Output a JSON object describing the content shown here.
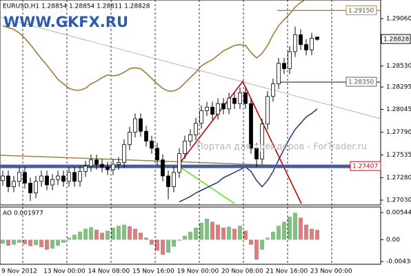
{
  "chart_data": [
    {
      "type": "candlestick",
      "title": "EURUSD,H1  1.28854 1.28854 1.28811 1.28828",
      "logo": "WWW.GKFX.RU",
      "watermark": "Портал для трейдеров - ForTrader.ru",
      "x_axis_labels": [
        "9 Nov 2012",
        "13 Nov 00:00",
        "14 Nov 08:00",
        "15 Nov 16:00",
        "19 Nov 00:00",
        "20 Nov 08:00",
        "21 Nov 16:00",
        "23 Nov 00:00"
      ],
      "open": [
        1.2725,
        1.273,
        1.2718,
        1.2724,
        1.2734,
        1.2722,
        1.2711,
        1.2724,
        1.273,
        1.272,
        1.2726,
        1.273,
        1.2724,
        1.2734,
        1.2724,
        1.2735,
        1.2741,
        1.2748,
        1.2743,
        1.274,
        1.2737,
        1.2743,
        1.2745,
        1.2765,
        1.2779,
        1.2794,
        1.278,
        1.2769,
        1.2761,
        1.2748,
        1.273,
        1.2718,
        1.2734,
        1.2755,
        1.2769,
        1.2776,
        1.2789,
        1.2803,
        1.2807,
        1.2799,
        1.2811,
        1.2805,
        1.2817,
        1.2811,
        1.2823,
        1.2811,
        1.2761,
        1.2749,
        1.2788,
        1.2819,
        1.2833,
        1.2856,
        1.285,
        1.2869,
        1.2888,
        1.2877,
        1.2871,
        1.28854
      ],
      "high": [
        1.2736,
        1.2736,
        1.273,
        1.274,
        1.274,
        1.2728,
        1.273,
        1.2736,
        1.2736,
        1.2732,
        1.2736,
        1.2736,
        1.274,
        1.274,
        1.2741,
        1.2747,
        1.2754,
        1.2754,
        1.2749,
        1.2746,
        1.2749,
        1.2751,
        1.2771,
        1.2785,
        1.28,
        1.28,
        1.2786,
        1.2775,
        1.2767,
        1.2754,
        1.2736,
        1.274,
        1.2761,
        1.2775,
        1.2782,
        1.2795,
        1.2809,
        1.2813,
        1.2813,
        1.2817,
        1.2817,
        1.2823,
        1.2823,
        1.2829,
        1.2829,
        1.2817,
        1.2767,
        1.2794,
        1.2825,
        1.2839,
        1.2862,
        1.2862,
        1.2875,
        1.2897,
        1.2894,
        1.2883,
        1.289,
        1.28854
      ],
      "low": [
        1.2719,
        1.2712,
        1.2712,
        1.2718,
        1.2716,
        1.2702,
        1.2705,
        1.2718,
        1.2714,
        1.2714,
        1.272,
        1.2718,
        1.2718,
        1.2718,
        1.2718,
        1.2729,
        1.2735,
        1.2737,
        1.2734,
        1.2731,
        1.2731,
        1.2737,
        1.2739,
        1.2759,
        1.2773,
        1.2774,
        1.2763,
        1.2755,
        1.2742,
        1.2724,
        1.2704,
        1.2712,
        1.2728,
        1.2749,
        1.2763,
        1.277,
        1.2783,
        1.2797,
        1.2793,
        1.2793,
        1.2799,
        1.2799,
        1.2805,
        1.2805,
        1.2805,
        1.2755,
        1.274,
        1.2743,
        1.2782,
        1.2813,
        1.2827,
        1.2844,
        1.2844,
        1.2863,
        1.2871,
        1.2865,
        1.2865,
        1.28811
      ],
      "close": [
        1.273,
        1.2718,
        1.2724,
        1.2734,
        1.2722,
        1.2711,
        1.2724,
        1.273,
        1.272,
        1.2726,
        1.273,
        1.2724,
        1.2734,
        1.2724,
        1.2735,
        1.2741,
        1.2748,
        1.2743,
        1.274,
        1.2737,
        1.2743,
        1.2745,
        1.2765,
        1.2779,
        1.2794,
        1.278,
        1.2769,
        1.2761,
        1.2748,
        1.273,
        1.2718,
        1.2734,
        1.2755,
        1.2769,
        1.2776,
        1.2789,
        1.2803,
        1.2807,
        1.2799,
        1.2811,
        1.2805,
        1.2817,
        1.2811,
        1.2823,
        1.2811,
        1.2761,
        1.2749,
        1.2788,
        1.2819,
        1.2833,
        1.2856,
        1.285,
        1.2869,
        1.2888,
        1.2877,
        1.2871,
        1.2884,
        1.28828
      ],
      "bull_color": "#ffffff",
      "bear_color": "#000000",
      "bands": [
        {
          "color": "#a07838",
          "values": [
            1.2898,
            1.2896,
            1.2894,
            1.289,
            1.2884,
            1.2877,
            1.2869,
            1.2861,
            1.2854,
            1.2846,
            1.2838,
            1.2833,
            1.2828,
            1.2826,
            1.2826,
            1.2828,
            1.2833,
            1.2836,
            1.284,
            1.2843,
            1.2842,
            1.2843,
            1.2846,
            1.285,
            1.2851,
            1.285,
            1.2845,
            1.2839,
            1.2833,
            1.2828,
            1.2825,
            1.2825,
            1.2828,
            1.2834,
            1.284,
            1.2846,
            1.2853,
            1.2857,
            1.286,
            1.2865,
            1.287,
            1.2873,
            1.2876,
            1.2877,
            1.2876,
            1.2868,
            1.2862,
            1.2867,
            1.2876,
            1.2888,
            1.2898,
            1.2905,
            1.2911,
            1.2919,
            1.2924,
            1.2928,
            1.2931,
            1.2934
          ]
        },
        {
          "color": "#2a3f7a",
          "values": [
            null,
            null,
            null,
            null,
            null,
            null,
            null,
            null,
            null,
            null,
            null,
            null,
            null,
            null,
            null,
            null,
            null,
            null,
            null,
            null,
            null,
            null,
            null,
            null,
            null,
            null,
            null,
            null,
            null,
            null,
            null,
            null,
            1.2701,
            1.2704,
            1.2707,
            1.2711,
            1.2714,
            1.2717,
            1.272,
            1.2723,
            1.2728,
            1.2731,
            1.2734,
            1.2737,
            1.274,
            1.2735,
            1.2725,
            1.2718,
            1.2725,
            1.2735,
            1.2748,
            1.276,
            1.2772,
            1.2782,
            1.2789,
            1.2796,
            1.28,
            1.2805
          ]
        }
      ],
      "levels": [
        {
          "value": 1.2915,
          "label": "1.29150",
          "color": "#b08848"
        },
        {
          "value": 1.2835,
          "label": "1.28350",
          "color": "#56627e"
        },
        {
          "value": 1.27407,
          "label": "1.27407",
          "color": "#4a5a9a",
          "label_color": "#e00000"
        }
      ],
      "last_price": {
        "value": 1.28828,
        "label": "1.28828"
      },
      "ylim": [
        1.26976,
        1.29245
      ],
      "yticks": [
        {
          "value": 1.2906,
          "label": "1.29060"
        },
        {
          "value": 1.2853,
          "label": "1.28530"
        },
        1.28295,
        1.28045,
        {
          "value": 1.2779,
          "label": "1.27790"
        },
        1.27535,
        {
          "value": 1.2728,
          "label": "1.27280"
        },
        {
          "value": 1.2703,
          "label": "1.27030"
        }
      ]
    },
    {
      "type": "bar",
      "title": "AO 0.001977",
      "values": [
        -0.0008,
        -0.0012,
        -0.001,
        -0.0006,
        -0.0009,
        -0.0013,
        -0.0011,
        -0.0015,
        -0.002,
        -0.0018,
        -0.0012,
        -0.0006,
        0.0004,
        0.001,
        0.0016,
        0.0022,
        0.0025,
        0.002,
        0.0014,
        0.0018,
        0.0024,
        0.0028,
        0.003,
        0.0027,
        0.0022,
        0.0014,
        0.0004,
        -0.001,
        -0.0022,
        -0.003,
        -0.0026,
        -0.0014,
        -0.0002,
        0.0008,
        0.0016,
        0.0024,
        0.0034,
        0.0042,
        0.0036,
        0.003,
        0.0024,
        0.0026,
        0.0022,
        0.0028,
        0.0018,
        -0.001,
        -0.004,
        -0.002,
        0.0004,
        0.0016,
        0.0028,
        0.0036,
        0.0046,
        0.0054,
        0.0044,
        0.003,
        0.0022,
        0.001977
      ],
      "up_color": "#008000",
      "down_color": "#b00000",
      "ylim": [
        -0.00493,
        0.00655
      ],
      "yticks": [
        0.00544,
        {
          "value": 0,
          "label": "0.00"
        },
        -0.00438
      ]
    }
  ]
}
